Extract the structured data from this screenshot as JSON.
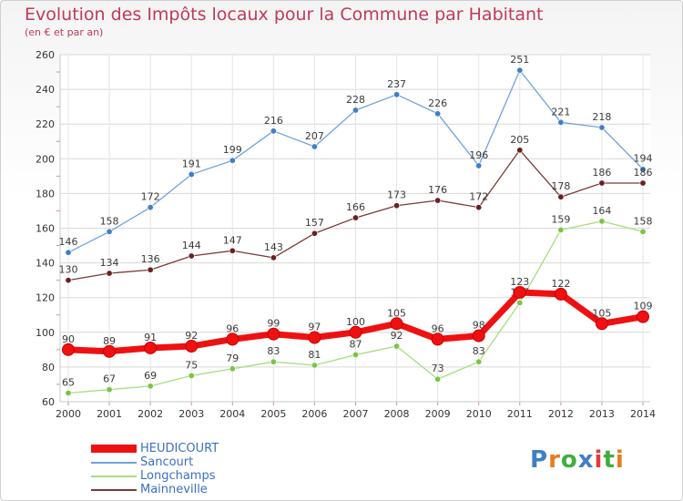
{
  "header": {
    "title": "Evolution des Impôts locaux pour la Commune par Habitant",
    "subtitle": "(en € et par an)"
  },
  "logo": {
    "text": "Proxiti"
  },
  "chart_data": {
    "type": "line",
    "title": "Evolution des Impôts locaux pour la Commune par Habitant",
    "subtitle": "(en € et par an)",
    "xlabel": "",
    "ylabel": "",
    "ylim": [
      60,
      260
    ],
    "yticks": [
      60,
      80,
      100,
      120,
      140,
      160,
      180,
      200,
      220,
      240,
      260
    ],
    "categories": [
      "2000",
      "2001",
      "2002",
      "2003",
      "2004",
      "2005",
      "2006",
      "2007",
      "2008",
      "2009",
      "2010",
      "2011",
      "2012",
      "2013",
      "2014"
    ],
    "grid": true,
    "legend_position": "bottom-left",
    "series": [
      {
        "name": "Sancourt",
        "color": "#6fa3d8",
        "marker": "#3f7fc8",
        "values": [
          146,
          158,
          172,
          191,
          199,
          216,
          207,
          228,
          237,
          226,
          196,
          251,
          221,
          218,
          194
        ]
      },
      {
        "name": "Mainneville",
        "color": "#7a3a3a",
        "marker": "#6a2020",
        "values": [
          130,
          134,
          136,
          144,
          147,
          143,
          157,
          166,
          173,
          176,
          172,
          205,
          178,
          186,
          186
        ]
      },
      {
        "name": "Longchamps",
        "color": "#a6dd7f",
        "marker": "#7cc444",
        "values": [
          65,
          67,
          69,
          75,
          79,
          83,
          81,
          87,
          92,
          73,
          83,
          117,
          159,
          164,
          158
        ]
      },
      {
        "name": "HEUDICOURT",
        "color": "#ee1111",
        "marker": "#ee1111",
        "values": [
          90,
          89,
          91,
          92,
          96,
          99,
          97,
          100,
          105,
          96,
          98,
          123,
          122,
          105,
          109
        ]
      }
    ]
  }
}
